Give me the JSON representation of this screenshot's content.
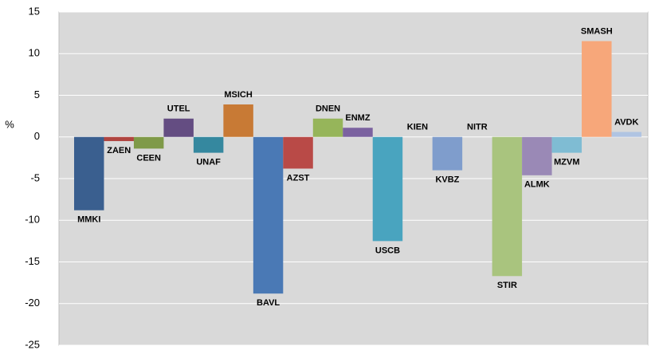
{
  "chart_data": {
    "type": "bar",
    "y_label": "%",
    "categories": [
      "MMKI",
      "ZAEN",
      "CEEN",
      "UTEL",
      "UNAF",
      "MSICH",
      "BAVL",
      "AZST",
      "DNEN",
      "ENMZ",
      "USCB",
      "KIEN",
      "KVBZ",
      "NITR",
      "STIR",
      "ALMK",
      "MZVM",
      "SMASH",
      "AVDK"
    ],
    "values": [
      -8.8,
      -0.5,
      -1.4,
      2.2,
      -1.9,
      3.9,
      -18.8,
      -3.8,
      2.2,
      1.1,
      -12.5,
      0,
      -4.0,
      0,
      -16.7,
      -4.6,
      -1.9,
      11.5,
      0.6
    ],
    "colors": [
      "#3a5f8f",
      "#b04540",
      "#7f9a48",
      "#644d82",
      "#35889f",
      "#c87a35",
      "#4a79b5",
      "#b94a47",
      "#96b55a",
      "#7b62a0",
      "#49a4bf",
      "#4aa0bf",
      "#7f9dcc",
      "#f0a070",
      "#a9c47e",
      "#9a89b6",
      "#7fbcd3",
      "#f7a77a",
      "#b0c4e2"
    ],
    "ylim": [
      -25,
      15
    ],
    "yticks": [
      -25,
      -20,
      -15,
      -10,
      -5,
      0,
      5,
      10,
      15
    ],
    "grid": true
  }
}
